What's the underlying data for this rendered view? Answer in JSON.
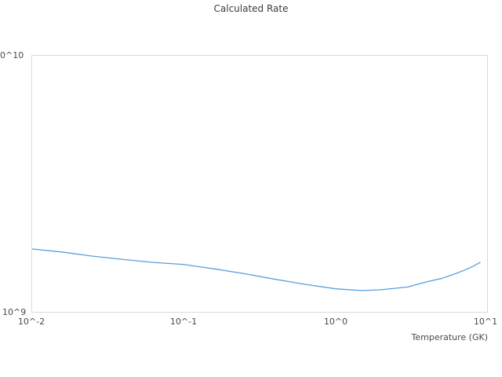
{
  "title": "Calculated Rate",
  "axes": {
    "x_label": "Temperature (GK)",
    "x_ticks": [
      "10^-2",
      "10^-1",
      "10^0",
      "10^1"
    ],
    "y_ticks": [
      "0^10",
      "10^9"
    ]
  },
  "colors": {
    "line": "#55a0e0",
    "plot_border": "#d9d9d9",
    "title_text": "#3d3d3d",
    "tick_text": "#4a4a4a"
  },
  "chart_data": {
    "type": "line",
    "title": "Calculated Rate",
    "xlabel": "Temperature (GK)",
    "ylabel": "",
    "xscale": "log",
    "yscale": "log",
    "xlim": [
      0.01,
      10
    ],
    "ylim": [
      1000000000.0,
      10000000000.0
    ],
    "grid": false,
    "legend": false,
    "line_color": "#55a0e0",
    "x": [
      0.01,
      0.016,
      0.025,
      0.04,
      0.063,
      0.1,
      0.16,
      0.25,
      0.4,
      0.63,
      1.0,
      1.5,
      2.0,
      3.0,
      4.0,
      5.0,
      6.0,
      7.0,
      8.0,
      9.0
    ],
    "y": [
      1760000000.0,
      1710000000.0,
      1650000000.0,
      1600000000.0,
      1560000000.0,
      1530000000.0,
      1470000000.0,
      1410000000.0,
      1340000000.0,
      1280000000.0,
      1230000000.0,
      1210000000.0,
      1220000000.0,
      1250000000.0,
      1310000000.0,
      1350000000.0,
      1400000000.0,
      1450000000.0,
      1500000000.0,
      1560000000.0
    ]
  }
}
